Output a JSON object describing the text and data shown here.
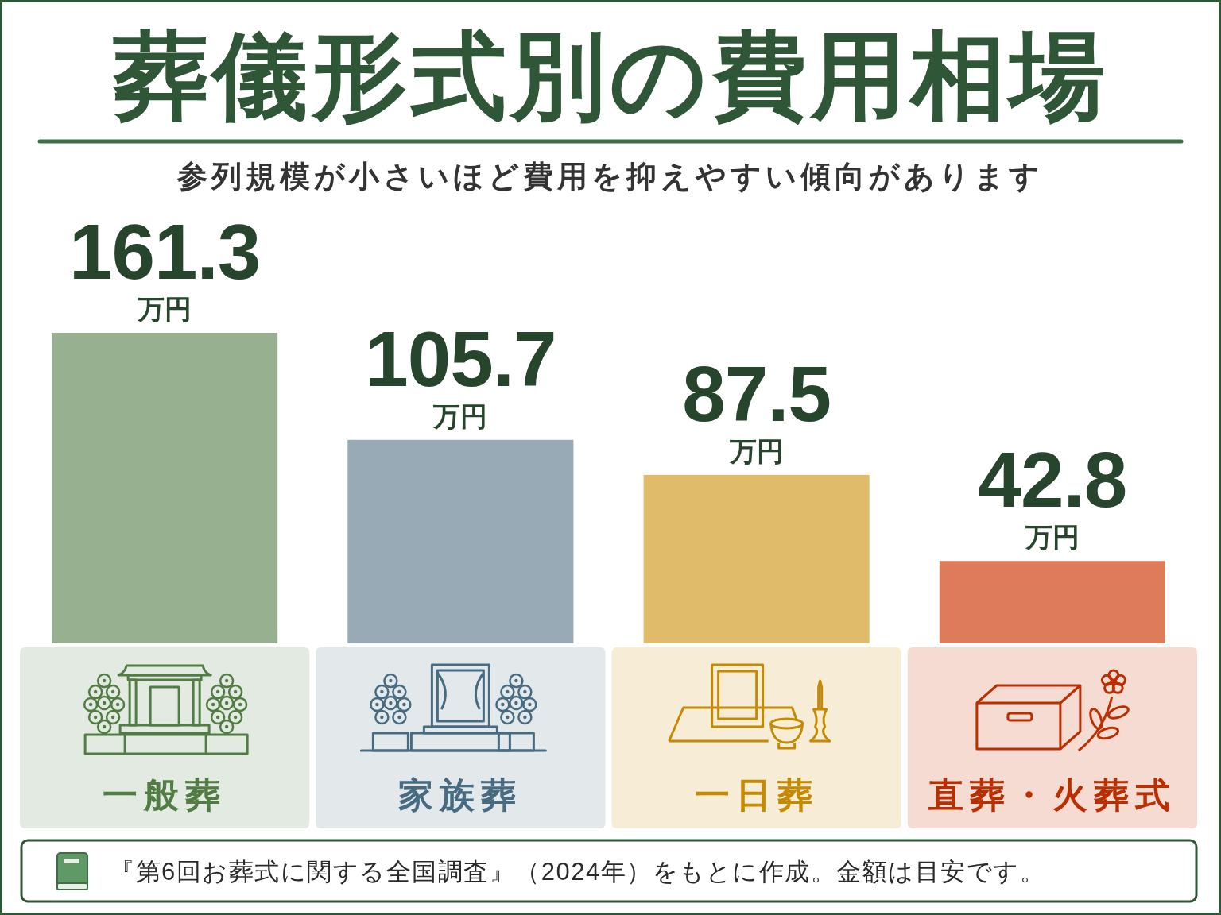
{
  "chart_data": {
    "type": "bar",
    "title": "葬儀形式別の費用相場",
    "subtitle": "参列規模が小さいほど費用を抑えやすい傾向があります",
    "categories": [
      "一般葬",
      "家族葬",
      "一日葬",
      "直葬・火葬式"
    ],
    "values": [
      161.3,
      105.7,
      87.5,
      42.8
    ],
    "colors": [
      "#97b08f",
      "#97aab5",
      "#e0bc6a",
      "#dd7b5b"
    ],
    "value_labels": [
      "161.3万円",
      "105.7万円",
      "87.5万円",
      "42.8万円"
    ],
    "annotations": [
      "『第6回お葬式に関する全国調査』（2024年）をもとに作成。金額は目安です。"
    ]
  }
}
